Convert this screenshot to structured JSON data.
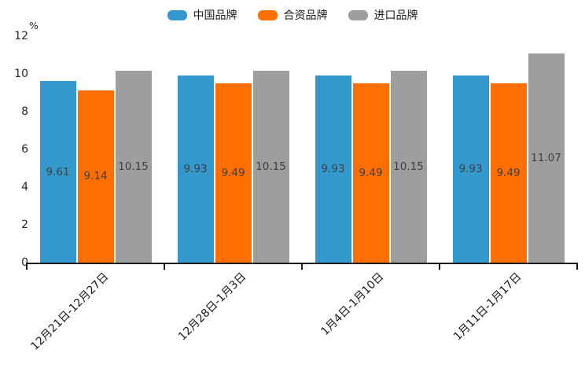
{
  "chart_data": {
    "type": "bar",
    "title": "",
    "ylabel_unit": "%",
    "categories": [
      "12月21日-12月27日",
      "12月28日-1月3日",
      "1月4日-1月10日",
      "1月11日-1月17日"
    ],
    "series": [
      {
        "name": "中国品牌",
        "color": "#3398cb",
        "values": [
          9.61,
          9.93,
          9.93,
          9.93
        ]
      },
      {
        "name": "合资品牌",
        "color": "#ff6e00",
        "values": [
          9.14,
          9.49,
          9.49,
          9.49
        ]
      },
      {
        "name": "进口品牌",
        "color": "#9e9e9e",
        "values": [
          10.15,
          10.15,
          10.15,
          11.07
        ]
      }
    ],
    "y_ticks": [
      0,
      2,
      4,
      6,
      8,
      10,
      12
    ],
    "ylim": [
      0,
      12
    ],
    "grid": false,
    "legend_position": "top",
    "bar_label_color": "#404040",
    "axis_color": "#1a1a1a",
    "tick_label_color": "#262626"
  }
}
